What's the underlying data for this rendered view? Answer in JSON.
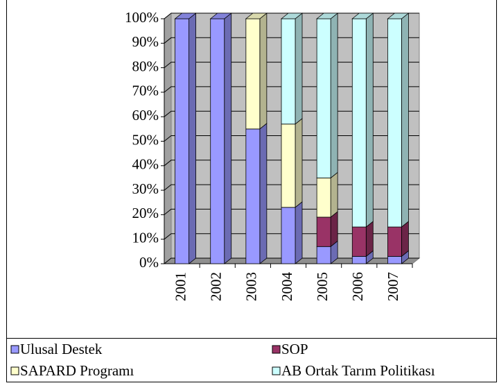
{
  "chart_data": {
    "type": "stacked_bar_3d",
    "categories": [
      "2001",
      "2002",
      "2003",
      "2004",
      "2005",
      "2006",
      "2007"
    ],
    "series": [
      {
        "name": "Ulusal Destek",
        "color": "#9999ff",
        "values": [
          100,
          100,
          55,
          23,
          7,
          3,
          3
        ]
      },
      {
        "name": "SOP",
        "color": "#993366",
        "values": [
          0,
          0,
          0,
          0,
          12,
          12,
          12
        ]
      },
      {
        "name": "SAPARD Programı",
        "color": "#ffffcc",
        "values": [
          0,
          0,
          45,
          34,
          16,
          0,
          0
        ]
      },
      {
        "name": "AB Ortak Tarım Politikası",
        "color": "#ccffff",
        "values": [
          0,
          0,
          0,
          43,
          65,
          85,
          85
        ]
      }
    ],
    "ylim": [
      0,
      100
    ],
    "yticks": [
      {
        "value": 0,
        "label": "0%"
      },
      {
        "value": 10,
        "label": "10%"
      },
      {
        "value": 20,
        "label": "20%"
      },
      {
        "value": 30,
        "label": "30%"
      },
      {
        "value": 40,
        "label": "40%"
      },
      {
        "value": 50,
        "label": "50%"
      },
      {
        "value": 60,
        "label": "60%"
      },
      {
        "value": 70,
        "label": "70%"
      },
      {
        "value": 80,
        "label": "80%"
      },
      {
        "value": 90,
        "label": "90%"
      },
      {
        "value": 100,
        "label": "100%"
      }
    ],
    "grid": true
  }
}
